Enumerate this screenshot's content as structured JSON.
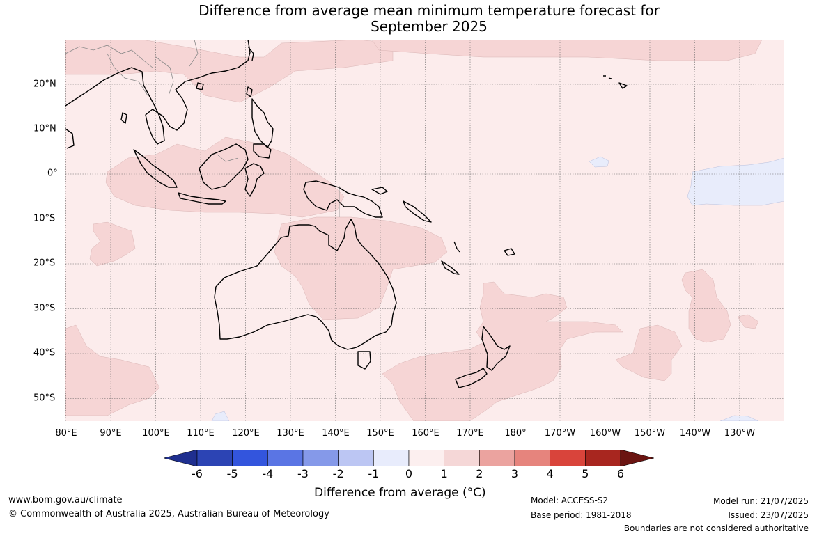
{
  "title_line1": "Difference from average mean minimum temperature forecast for",
  "title_line2": "September 2025",
  "lon_labels": [
    "80°E",
    "90°E",
    "100°E",
    "110°E",
    "120°E",
    "130°E",
    "140°E",
    "150°E",
    "160°E",
    "170°E",
    "180°",
    "170°W",
    "160°W",
    "150°W",
    "140°W",
    "130°W"
  ],
  "lat_labels": [
    "20°N",
    "10°N",
    "0°",
    "10°S",
    "20°S",
    "30°S",
    "40°S",
    "50°S"
  ],
  "colorbar": {
    "ticks": [
      "-6",
      "-5",
      "-4",
      "-3",
      "-2",
      "-1",
      "0",
      "1",
      "2",
      "3",
      "4",
      "5",
      "6"
    ],
    "colors": [
      "#1f2f8f",
      "#2c44b4",
      "#3355dd",
      "#5a75e4",
      "#8599e9",
      "#bcc6f3",
      "#e8ecfc",
      "#fcefef",
      "#f5d7d7",
      "#eba39f",
      "#e6847d",
      "#d9443b",
      "#a8261f",
      "#6b1512"
    ],
    "label": "Difference from average (°C)"
  },
  "map_colors": {
    "ocean": "#fcecec",
    "warm": "#f6d5d5",
    "cool": "#e8ecfb",
    "land_outline": "#000000",
    "grid": "#666666"
  },
  "footer": {
    "website": "www.bom.gov.au/climate",
    "copyright": "© Commonwealth of Australia 2025, Australian Bureau of Meteorology",
    "model": "Model: ACCESS-S2",
    "base_period": "Base period: 1981-2018",
    "model_run": "Model run: 21/07/2025",
    "issued": "Issued: 23/07/2025",
    "disclaimer": "Boundaries are not considered authoritative"
  }
}
